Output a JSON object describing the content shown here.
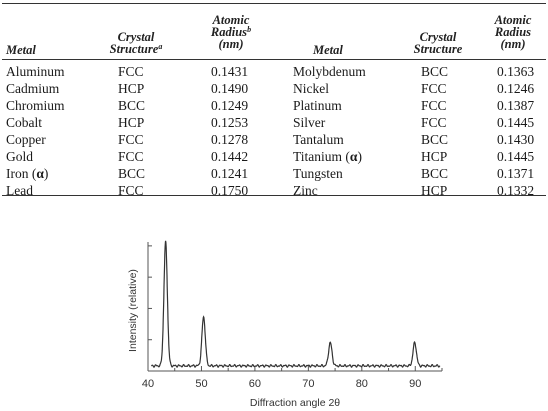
{
  "table": {
    "headers": {
      "metal": "Metal",
      "crystal_line1": "Crystal",
      "crystal_line2": "Structure",
      "crystal_note": "a",
      "radius_line1": "Atomic",
      "radius_line2": "Radius",
      "radius_note": "b",
      "radius_unit": "(nm)"
    },
    "left_rows": [
      {
        "metal": "Aluminum",
        "structure": "FCC",
        "radius": "0.1431"
      },
      {
        "metal": "Cadmium",
        "structure": "HCP",
        "radius": "0.1490"
      },
      {
        "metal": "Chromium",
        "structure": "BCC",
        "radius": "0.1249"
      },
      {
        "metal": "Cobalt",
        "structure": "HCP",
        "radius": "0.1253"
      },
      {
        "metal": "Copper",
        "structure": "FCC",
        "radius": "0.1278"
      },
      {
        "metal": "Gold",
        "structure": "FCC",
        "radius": "0.1442"
      },
      {
        "metal": "Iron (",
        "alpha": "α",
        "close": ")",
        "structure": "BCC",
        "radius": "0.1241"
      },
      {
        "metal": "Lead",
        "structure": "FCC",
        "radius": "0.1750"
      }
    ],
    "right_rows": [
      {
        "metal": "Molybdenum",
        "structure": "BCC",
        "radius": "0.1363"
      },
      {
        "metal": "Nickel",
        "structure": "FCC",
        "radius": "0.1246"
      },
      {
        "metal": "Platinum",
        "structure": "FCC",
        "radius": "0.1387"
      },
      {
        "metal": "Silver",
        "structure": "FCC",
        "radius": "0.1445"
      },
      {
        "metal": "Tantalum",
        "structure": "BCC",
        "radius": "0.1430"
      },
      {
        "metal": "Titanium (",
        "alpha": "α",
        "close": ")",
        "structure": "HCP",
        "radius": "0.1445"
      },
      {
        "metal": "Tungsten",
        "structure": "BCC",
        "radius": "0.1371"
      },
      {
        "metal": "Zinc",
        "structure": "HCP",
        "radius": "0.1332"
      }
    ]
  },
  "chart_data": {
    "type": "line",
    "xlabel": "Diffraction angle 2θ",
    "ylabel": "Intensity (relative)",
    "xlim": [
      40,
      95
    ],
    "x_ticks": [
      40,
      50,
      60,
      70,
      80,
      90
    ],
    "y_relative_max": 1.0,
    "baseline": 0.04,
    "peaks": [
      {
        "x": 43.3,
        "y": 1.0
      },
      {
        "x": 50.4,
        "y": 0.42
      },
      {
        "x": 74.1,
        "y": 0.22
      },
      {
        "x": 89.9,
        "y": 0.22
      }
    ],
    "colors": {
      "line": "#333333",
      "axis": "#555555"
    }
  }
}
